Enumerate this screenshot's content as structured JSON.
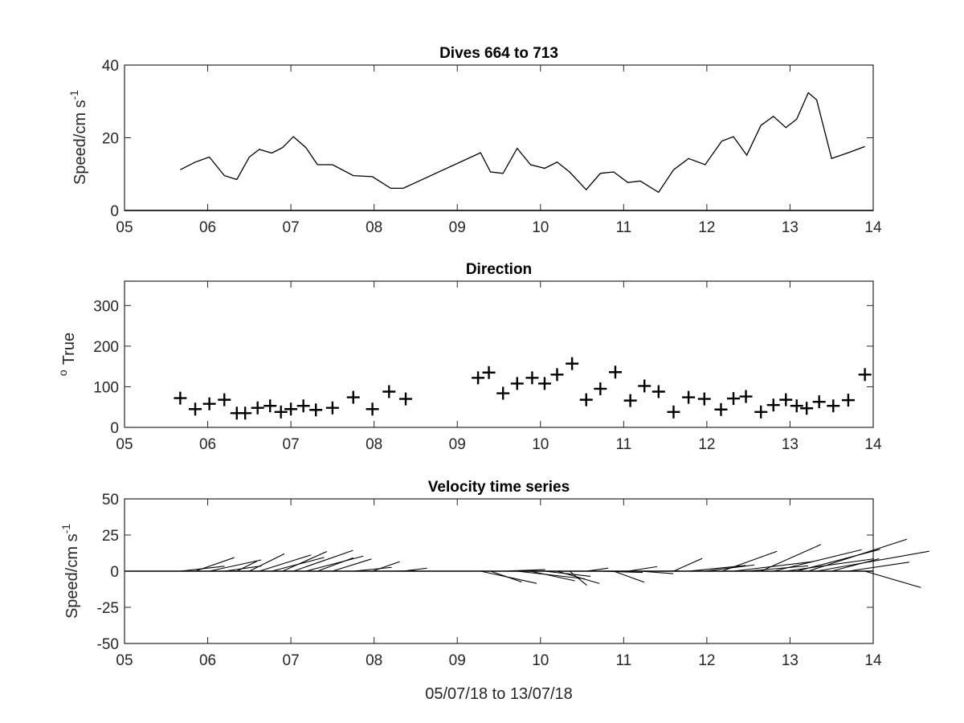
{
  "figure": {
    "xlabel": "05/07/18 to 13/07/18"
  },
  "chart_data": [
    {
      "type": "line",
      "title": "Dives 664 to 713",
      "ylabel": "Speed/cm s",
      "ylabel_superscript": "-1",
      "xlim": [
        5,
        14
      ],
      "ylim": [
        0,
        40
      ],
      "xticks": [
        "05",
        "06",
        "07",
        "08",
        "09",
        "10",
        "11",
        "12",
        "13",
        "14"
      ],
      "yticks": [
        "0",
        "20",
        "40"
      ],
      "series": [
        {
          "x": [
            5.67,
            5.85,
            6.02,
            6.2,
            6.35,
            6.5,
            6.62,
            6.77,
            6.9,
            7.03,
            7.18,
            7.32,
            7.5,
            7.75,
            7.98,
            8.2,
            8.35,
            9.28,
            9.4,
            9.55,
            9.72,
            9.88,
            10.05,
            10.2,
            10.35,
            10.55,
            10.72,
            10.88,
            11.05,
            11.2,
            11.42,
            11.6,
            11.78,
            11.98,
            12.18,
            12.32,
            12.48,
            12.65,
            12.8,
            12.95,
            13.08,
            13.22,
            13.32,
            13.5,
            13.7,
            13.9
          ],
          "y": [
            11.2,
            13.3,
            14.7,
            9.6,
            8.5,
            14.7,
            16.8,
            15.8,
            17.3,
            20.3,
            17.3,
            12.6,
            12.6,
            9.6,
            9.3,
            6.1,
            6.1,
            15.9,
            10.6,
            10.2,
            17.1,
            12.6,
            11.6,
            13.3,
            10.6,
            5.7,
            10.2,
            10.6,
            7.7,
            8.1,
            5.0,
            11.2,
            14.3,
            12.6,
            19.1,
            20.3,
            15.2,
            23.4,
            25.9,
            22.8,
            25.1,
            32.4,
            30.4,
            14.3,
            15.9,
            17.6
          ]
        }
      ]
    },
    {
      "type": "scatter",
      "title": "Direction",
      "ylabel": "True",
      "ylabel_prefix": "o",
      "xlim": [
        5,
        14
      ],
      "ylim": [
        0,
        360
      ],
      "xticks": [
        "05",
        "06",
        "07",
        "08",
        "09",
        "10",
        "11",
        "12",
        "13",
        "14"
      ],
      "yticks": [
        "0",
        "100",
        "200",
        "300"
      ],
      "marker": "+",
      "series": [
        {
          "x": [
            5.67,
            5.85,
            6.02,
            6.2,
            6.35,
            6.45,
            6.6,
            6.75,
            6.88,
            7.0,
            7.15,
            7.3,
            7.5,
            7.75,
            7.98,
            8.18,
            8.38,
            9.25,
            9.38,
            9.55,
            9.72,
            9.9,
            10.05,
            10.2,
            10.38,
            10.55,
            10.72,
            10.9,
            11.08,
            11.25,
            11.42,
            11.6,
            11.78,
            11.97,
            12.17,
            12.32,
            12.47,
            12.65,
            12.8,
            12.95,
            13.08,
            13.2,
            13.35,
            13.52,
            13.7,
            13.9
          ],
          "y": [
            72,
            45,
            58,
            68,
            35,
            35,
            48,
            53,
            38,
            45,
            53,
            43,
            48,
            74,
            45,
            88,
            70,
            122,
            135,
            84,
            108,
            122,
            108,
            130,
            157,
            68,
            95,
            136,
            66,
            102,
            88,
            38,
            74,
            70,
            44,
            71,
            76,
            38,
            55,
            68,
            53,
            47,
            63,
            53,
            67,
            130
          ]
        }
      ]
    },
    {
      "type": "quiver",
      "title": "Velocity time series",
      "ylabel": "Speed/cm s",
      "ylabel_superscript": "-1",
      "xlim": [
        5,
        14
      ],
      "ylim": [
        -50,
        50
      ],
      "xticks": [
        "05",
        "06",
        "07",
        "08",
        "09",
        "10",
        "11",
        "12",
        "13",
        "14"
      ],
      "yticks": [
        "-50",
        "-25",
        "0",
        "25",
        "50"
      ],
      "series": [
        {
          "x": [
            5.67,
            5.85,
            6.02,
            6.2,
            6.35,
            6.5,
            6.62,
            6.77,
            6.9,
            7.03,
            7.18,
            7.32,
            7.5,
            7.75,
            7.98,
            8.2,
            8.35,
            9.28,
            9.4,
            9.55,
            9.72,
            9.88,
            10.05,
            10.2,
            10.35,
            10.55,
            10.72,
            10.88,
            11.05,
            11.2,
            11.42,
            11.6,
            11.78,
            11.98,
            12.18,
            12.32,
            12.48,
            12.65,
            12.8,
            12.95,
            13.08,
            13.22,
            13.32,
            13.5,
            13.7,
            13.9
          ],
          "speed": [
            11.2,
            13.3,
            14.7,
            9.6,
            8.5,
            14.7,
            16.8,
            15.8,
            17.3,
            20.3,
            17.3,
            12.6,
            12.6,
            9.6,
            9.3,
            6.1,
            6.1,
            15.9,
            10.6,
            10.2,
            17.1,
            12.6,
            11.6,
            13.3,
            10.6,
            5.7,
            10.2,
            10.6,
            7.7,
            8.1,
            5.0,
            11.2,
            14.3,
            12.6,
            19.1,
            20.3,
            15.2,
            23.4,
            25.9,
            22.8,
            25.1,
            32.4,
            30.4,
            14.3,
            15.9,
            17.6
          ],
          "direction_deg_true": [
            72,
            45,
            58,
            68,
            35,
            35,
            48,
            53,
            38,
            45,
            53,
            43,
            48,
            74,
            45,
            88,
            70,
            122,
            135,
            84,
            108,
            122,
            108,
            130,
            157,
            68,
            95,
            136,
            66,
            102,
            88,
            38,
            74,
            70,
            44,
            71,
            76,
            38,
            55,
            68,
            53,
            47,
            63,
            53,
            67,
            130
          ]
        }
      ]
    }
  ]
}
